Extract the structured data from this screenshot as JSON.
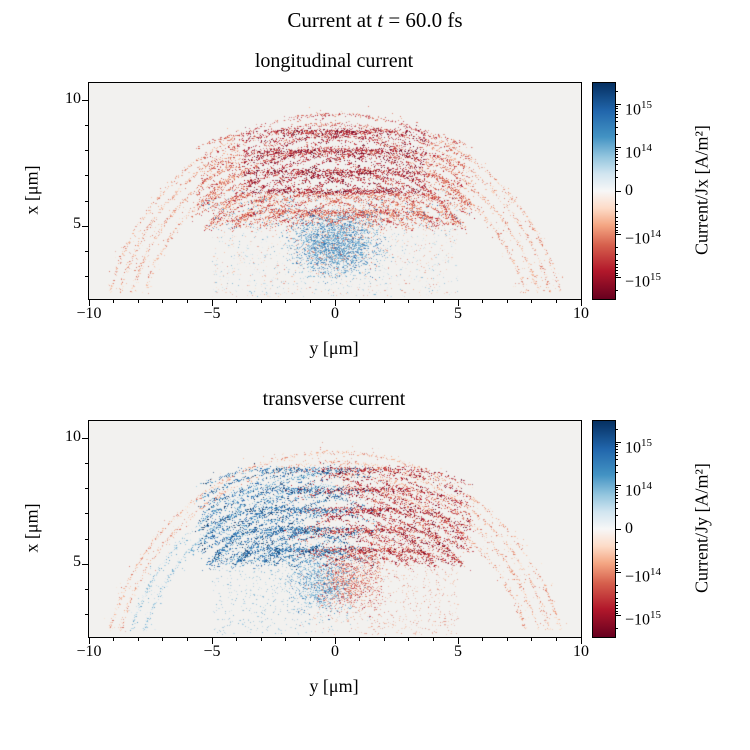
{
  "suptitle": {
    "prefix": "Current at ",
    "var": "t",
    "suffix": " = 60.0 fs"
  },
  "axes": {
    "xlim": [
      -10,
      10
    ],
    "ylim": [
      2.1,
      10.7
    ],
    "x_major": [
      -10,
      -5,
      0,
      5,
      10
    ],
    "x_major_labels": [
      "−10",
      "−5",
      "0",
      "5",
      "10"
    ],
    "x_minor": [
      -9,
      -8,
      -7,
      -6,
      -4,
      -3,
      -2,
      -1,
      1,
      2,
      3,
      4,
      6,
      7,
      8,
      9
    ],
    "y_major": [
      10,
      5
    ],
    "y_major_labels": [
      "10",
      "5"
    ],
    "y_minor": [
      3,
      4,
      6,
      7,
      8,
      9
    ]
  },
  "colorbar": {
    "gradient": [
      "#053061",
      "#2166ac",
      "#4393c3",
      "#92c5de",
      "#d1e5f0",
      "#f7f7f7",
      "#fddbc7",
      "#f4a582",
      "#d6604d",
      "#b2182b",
      "#67001f"
    ],
    "ticks": [
      {
        "pos": 10,
        "main": "10",
        "sup": "15"
      },
      {
        "pos": 30,
        "main": "10",
        "sup": "14"
      },
      {
        "pos": 50,
        "main": "0",
        "sup": ""
      },
      {
        "pos": 70,
        "main": "−10",
        "sup": "14"
      },
      {
        "pos": 90,
        "main": "−10",
        "sup": "15"
      }
    ]
  },
  "panels": [
    {
      "title": "longitudinal current",
      "xlabel": "y [μm]",
      "ylabel": "x [μm]",
      "cb_label": "Current/Jx [A/m²]"
    },
    {
      "title": "transverse current",
      "xlabel": "y [μm]",
      "ylabel": "x [μm]",
      "cb_label": "Current/Jy [A/m²]"
    }
  ],
  "chart_data": [
    {
      "type": "heatmap",
      "title": "longitudinal current",
      "xlabel": "y [μm]",
      "ylabel": "x [μm]",
      "xlim": [
        -10,
        10
      ],
      "ylim": [
        2.1,
        10.7
      ],
      "colorbar_label": "Current/Jx [A/m²]",
      "colorbar_scale": "symlog",
      "colorbar_ticks": [
        1000000000000000.0,
        100000000000000.0,
        0,
        -100000000000000.0,
        -1000000000000000.0
      ],
      "colormap": "RdBu",
      "structure": "dome-shaped shell of crossing filament arcs; strong negative (dark red) woven current filaments in upper center region |y|<4, 5.5<x<9.5; faint red outer wing arcs reaching |y|≈9 at x≈3; diffuse positive (blue) speckle cloud near bottom center around y=0, x≈3–6",
      "render": {
        "seed": 20,
        "mode": "jx",
        "background": "#f2f1ef",
        "wing_radii": [
          8.1,
          8.6,
          9.05,
          9.45
        ],
        "wing_count": 750,
        "weave_centers": [
          -2.2,
          -1.1,
          0,
          1.1,
          2.2
        ],
        "weave_radii": [
          5.6,
          6.4,
          7.2,
          8.0,
          8.8
        ],
        "weave_count": 500,
        "blob_count": 2600,
        "speckle_count": 1700,
        "reds": [
          "#67001f",
          "#b2182b",
          "#d6604d",
          "#f4a582",
          "#fddbc7"
        ],
        "blues": [
          "#053061",
          "#2166ac",
          "#4393c3",
          "#92c5de",
          "#d1e5f0"
        ]
      }
    },
    {
      "type": "heatmap",
      "title": "transverse current",
      "xlabel": "y [μm]",
      "ylabel": "x [μm]",
      "xlim": [
        -10,
        10
      ],
      "ylim": [
        2.1,
        10.7
      ],
      "colorbar_label": "Current/Jy [A/m²]",
      "colorbar_scale": "symlog",
      "colorbar_ticks": [
        1000000000000000.0,
        100000000000000.0,
        0,
        -100000000000000.0,
        -1000000000000000.0
      ],
      "colormap": "RdBu",
      "structure": "same dome-shaped shell; transverse current antisymmetric about y=0: left-side filament arcs positive (blue), right-side arcs negative (red), interleaved near the apex; outermost wing arcs faint red on both sides; faint mixed speckle near bottom center",
      "render": {
        "seed": 77,
        "mode": "jy",
        "background": "#f2f1ef",
        "wing_radii": [
          8.1,
          8.6,
          9.05,
          9.45
        ],
        "wing_count": 750,
        "weave_centers": [
          -2.2,
          -1.1,
          0,
          1.1,
          2.2
        ],
        "weave_radii": [
          5.6,
          6.4,
          7.2,
          8.0,
          8.8
        ],
        "weave_count": 500,
        "blob_count": 1900,
        "speckle_count": 1500,
        "reds": [
          "#67001f",
          "#b2182b",
          "#d6604d",
          "#f4a582",
          "#fddbc7"
        ],
        "blues": [
          "#053061",
          "#2166ac",
          "#4393c3",
          "#92c5de",
          "#d1e5f0"
        ]
      }
    }
  ]
}
